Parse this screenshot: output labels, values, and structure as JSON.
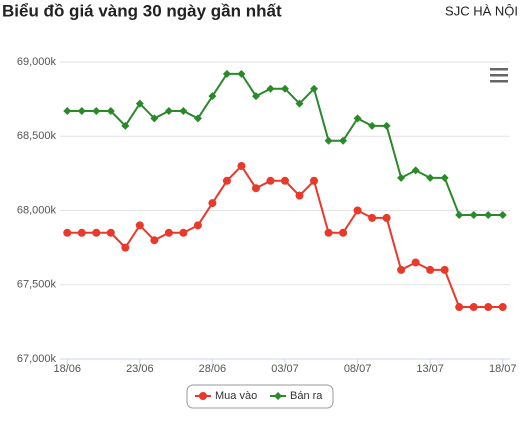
{
  "chart_data": {
    "type": "line",
    "title": "Biểu đồ giá vàng 30 ngày gần nhất",
    "subtitle": "SJC HÀ NỘI",
    "categories": [
      "18/06",
      null,
      null,
      null,
      null,
      "23/06",
      null,
      null,
      null,
      null,
      "28/06",
      null,
      null,
      null,
      null,
      "03/07",
      null,
      null,
      null,
      null,
      "08/07",
      null,
      null,
      null,
      null,
      "13/07",
      null,
      null,
      null,
      null,
      "18/07"
    ],
    "series": [
      {
        "name": "Mua vào",
        "color": "#e8392b",
        "values": [
          67850,
          67850,
          67850,
          67850,
          67750,
          67900,
          67800,
          67850,
          67850,
          67900,
          68050,
          68200,
          68300,
          68150,
          68200,
          68200,
          68100,
          68200,
          67850,
          67850,
          68000,
          67950,
          67950,
          67600,
          67650,
          67600,
          67600,
          67350,
          67350,
          67350,
          67350
        ]
      },
      {
        "name": "Bán ra",
        "color": "#2a8a2a",
        "values": [
          68670,
          68670,
          68670,
          68670,
          68570,
          68720,
          68620,
          68670,
          68670,
          68620,
          68770,
          68920,
          68920,
          68770,
          68820,
          68820,
          68720,
          68820,
          68470,
          68470,
          68620,
          68570,
          68570,
          68220,
          68270,
          68220,
          68220,
          67970,
          67970,
          67970,
          67970
        ]
      }
    ],
    "ylim": [
      67000,
      69000
    ],
    "yticks": [
      {
        "value": 67000,
        "label": "67,000k"
      },
      {
        "value": 67500,
        "label": "67,500k"
      },
      {
        "value": 68000,
        "label": "68,000k"
      },
      {
        "value": 68500,
        "label": "68,500k"
      },
      {
        "value": 69000,
        "label": "69,000k"
      }
    ],
    "grid": true
  }
}
